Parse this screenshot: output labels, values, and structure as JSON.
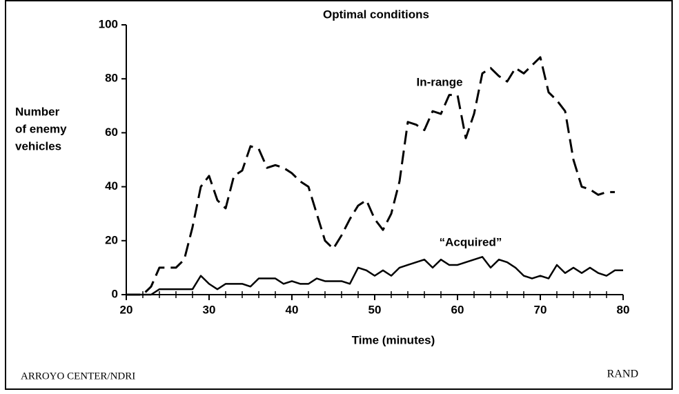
{
  "chart_data": {
    "type": "line",
    "title": "Optimal conditions",
    "ylabel": [
      "Number",
      "of enemy",
      "vehicles"
    ],
    "xlabel": "Time (minutes)",
    "annotations": [
      "In-range",
      "“Acquired”"
    ],
    "footer_left": "ARROYO CENTER/NDRI",
    "footer_right": "RAND",
    "x": [
      20,
      21,
      22,
      23,
      24,
      25,
      26,
      27,
      28,
      29,
      30,
      31,
      32,
      33,
      34,
      35,
      36,
      37,
      38,
      39,
      40,
      41,
      42,
      43,
      44,
      45,
      46,
      47,
      48,
      49,
      50,
      51,
      52,
      53,
      54,
      55,
      56,
      57,
      58,
      59,
      60,
      61,
      62,
      63,
      64,
      65,
      66,
      67,
      68,
      69,
      70,
      71,
      72,
      73,
      74,
      75,
      76,
      77,
      78,
      79,
      80
    ],
    "series": [
      {
        "name": "In-range",
        "color": "#000000",
        "style": "dashed",
        "values": [
          0,
          0,
          0,
          3,
          10,
          10,
          10,
          13,
          25,
          40,
          44,
          35,
          32,
          44,
          46,
          55,
          54,
          47,
          48,
          47,
          45,
          42,
          40,
          30,
          20,
          17,
          22,
          28,
          33,
          35,
          28,
          24,
          30,
          42,
          64,
          63,
          61,
          68,
          67,
          74,
          74,
          58,
          67,
          82,
          84,
          81,
          79,
          84,
          82,
          85,
          88,
          75,
          72,
          68,
          50,
          40,
          39,
          37,
          38,
          38,
          null
        ]
      },
      {
        "name": "“Acquired”",
        "color": "#000000",
        "style": "solid",
        "values": [
          0,
          0,
          0,
          0,
          2,
          2,
          2,
          2,
          2,
          7,
          4,
          2,
          4,
          4,
          4,
          3,
          6,
          6,
          6,
          4,
          5,
          4,
          4,
          6,
          5,
          5,
          5,
          4,
          10,
          9,
          7,
          9,
          7,
          10,
          11,
          12,
          13,
          10,
          13,
          11,
          11,
          12,
          13,
          14,
          10,
          13,
          12,
          10,
          7,
          6,
          7,
          6,
          11,
          8,
          10,
          8,
          10,
          8,
          7,
          9,
          9
        ]
      }
    ],
    "xlim": [
      20,
      80
    ],
    "xticks": [
      20,
      30,
      40,
      50,
      60,
      70,
      80
    ],
    "xminorticks": [
      22,
      24,
      26,
      28,
      32,
      34,
      36,
      38,
      42,
      44,
      46,
      48,
      52,
      54,
      56,
      58,
      62,
      64,
      66,
      68,
      72,
      74,
      76,
      78
    ],
    "ylim": [
      0,
      100
    ],
    "yticks": [
      0,
      20,
      40,
      60,
      80,
      100
    ],
    "grid": false
  }
}
